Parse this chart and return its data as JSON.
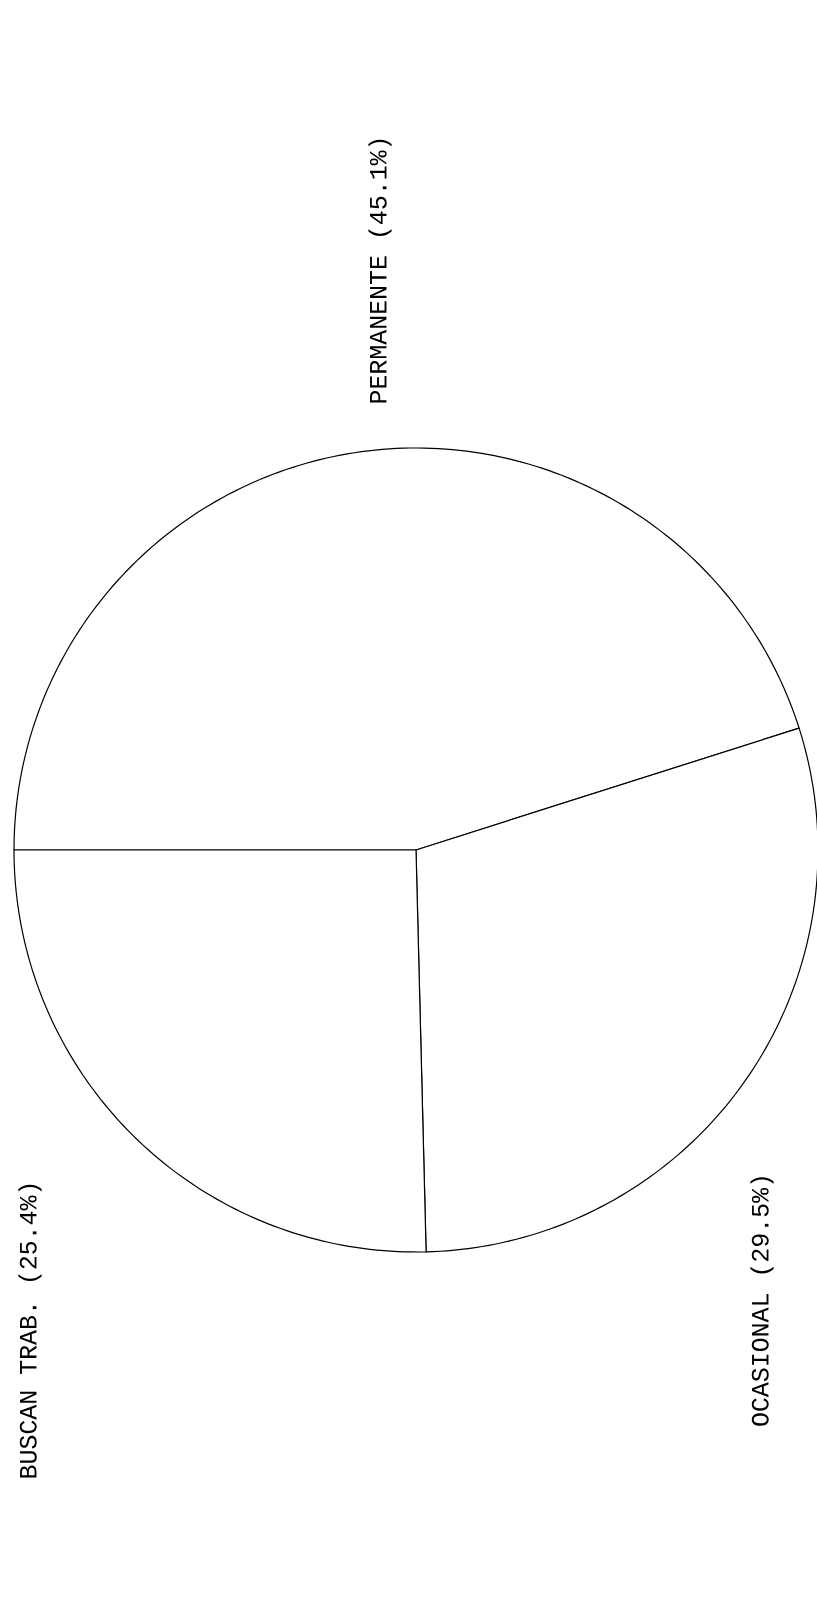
{
  "chart_data": {
    "type": "pie",
    "categories": [
      "PERMANENTE",
      "OCASIONAL",
      "BUSCAN TRAB."
    ],
    "values": [
      45.1,
      29.5,
      25.4
    ],
    "value_labels": [
      "(45.1%)",
      "(29.5%)",
      "(25.4%)"
    ],
    "colors": [
      "#ffffff",
      "#ffffff",
      "#ffffff"
    ]
  }
}
